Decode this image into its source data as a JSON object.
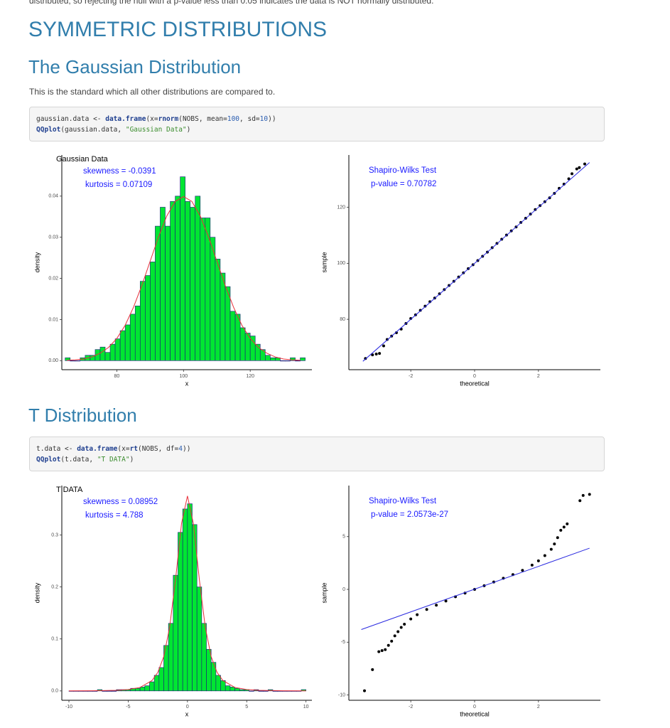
{
  "intro_fragment": "distributed, so rejecting the null with a p-value less than 0.05 indicates the data is NOT normally distributed.",
  "heading": "SYMMETRIC DISTRIBUTIONS",
  "sections": [
    {
      "title": "The Gaussian Distribution",
      "text": "This is the standard which all other distributions are compared to.",
      "code": [
        "gaussian.data <- data.frame(x=rnorm(NOBS, mean=100, sd=10))",
        "QQplot(gaussian.data, \"Gaussian Data\")"
      ],
      "charts": [
        {
          "type": "histogram",
          "title": "Gaussian Data",
          "annotations": [
            "skewness =  -0.0391",
            "kurtosis =  0.07109"
          ],
          "xlabel": "x",
          "ylabel": "density",
          "bins": [
            64.5,
            66,
            67.5,
            69,
            70.5,
            72,
            73.5,
            75,
            76.5,
            78,
            79.5,
            81,
            82.5,
            84,
            85.5,
            87,
            88.5,
            90,
            91.5,
            93,
            94.5,
            96,
            97.5,
            99,
            100.5,
            102,
            103.5,
            105,
            106.5,
            108,
            109.5,
            111,
            112.5,
            114,
            115.5,
            117,
            118.5,
            120,
            121.5,
            123,
            124.5,
            126,
            127.5,
            129,
            130.5,
            132,
            133.5,
            135,
            136.5
          ],
          "values": [
            0.0007,
            0,
            0,
            0.0007,
            0.0013,
            0.0013,
            0.0027,
            0.0033,
            0.002,
            0.004,
            0.0053,
            0.0073,
            0.0087,
            0.0113,
            0.0133,
            0.0193,
            0.0207,
            0.024,
            0.0327,
            0.0373,
            0.0327,
            0.0387,
            0.04,
            0.0447,
            0.0387,
            0.0373,
            0.04,
            0.0347,
            0.0347,
            0.03,
            0.0247,
            0.0213,
            0.018,
            0.012,
            0.0113,
            0.008,
            0.0067,
            0.006,
            0.004,
            0.0027,
            0.0013,
            0.0007,
            0.0007,
            0,
            0,
            0.0007,
            0,
            0.0007
          ],
          "color": "#00e632",
          "edgecolor": "#1c1c7a",
          "curve": {
            "x": [
              65,
              67.5,
              70,
              72.5,
              75,
              77.5,
              80,
              82.5,
              85,
              87.5,
              90,
              92.5,
              95,
              97.5,
              100,
              102.5,
              105,
              107.5,
              110,
              112.5,
              115,
              117.5,
              120,
              122.5,
              125,
              127.5,
              130,
              132.5,
              135
            ],
            "y": [
              0.0001,
              0.0002,
              0.0004,
              0.0009,
              0.0018,
              0.0032,
              0.0054,
              0.0086,
              0.013,
              0.0183,
              0.0242,
              0.0301,
              0.0352,
              0.0387,
              0.0399,
              0.0387,
              0.0352,
              0.0301,
              0.0242,
              0.0183,
              0.013,
              0.0086,
              0.0054,
              0.0032,
              0.0018,
              0.0009,
              0.0004,
              0.0002,
              0.0001
            ],
            "color": "#e8303a"
          },
          "xlim": [
            63.5,
            138.5
          ],
          "ylim": [
            -0.0022,
            0.05
          ],
          "xticks": [
            80,
            100,
            120
          ],
          "yticks": [
            {
              "value": 0,
              "label": "0.00"
            },
            0.01,
            0.02,
            0.03,
            0.04
          ]
        },
        {
          "type": "scatter",
          "annotations": [
            "Shapiro-Wilks Test",
            "p-value =  0.70782"
          ],
          "xlabel": "theoretical",
          "ylabel": "sample",
          "x": [
            -3.42,
            -3.2,
            -3.08,
            -2.98,
            -2.85,
            -2.74,
            -2.6,
            -2.45,
            -2.3,
            -2.15,
            -2.0,
            -1.85,
            -1.7,
            -1.55,
            -1.4,
            -1.25,
            -1.1,
            -0.95,
            -0.8,
            -0.65,
            -0.5,
            -0.35,
            -0.2,
            -0.05,
            0.1,
            0.25,
            0.4,
            0.55,
            0.7,
            0.85,
            1.0,
            1.15,
            1.3,
            1.45,
            1.6,
            1.75,
            1.9,
            2.05,
            2.2,
            2.35,
            2.5,
            2.65,
            2.8,
            2.95,
            3.05,
            3.2,
            3.28,
            3.45
          ],
          "y": [
            66.0,
            67.3,
            67.6,
            67.8,
            70.5,
            72.8,
            74.0,
            75.2,
            76.5,
            78.5,
            80.3,
            81.6,
            83.2,
            84.7,
            86.3,
            87.6,
            89.1,
            90.6,
            92.1,
            93.6,
            95.1,
            96.6,
            98.1,
            99.5,
            101.0,
            102.5,
            104.0,
            105.6,
            107.1,
            108.6,
            110.1,
            111.6,
            113.0,
            114.6,
            116.1,
            117.6,
            119.2,
            120.6,
            122.0,
            123.4,
            125.0,
            126.8,
            128.3,
            130.2,
            132.0,
            133.7,
            134.2,
            135.5
          ],
          "color": "#000000",
          "reference_line": {
            "x": [
              -3.5,
              3.6
            ],
            "y": [
              65,
              136
            ],
            "color": "#2a2ae0"
          },
          "xlim": [
            -3.94,
            3.94
          ],
          "ylim": [
            62,
            138.7
          ],
          "xticks": [
            -2,
            0,
            2
          ],
          "yticks": [
            80,
            100,
            120
          ]
        }
      ]
    },
    {
      "title": "T Distribution",
      "code": [
        "t.data <- data.frame(x=rt(NOBS, df=4))",
        "QQplot(t.data, \"T DATA\")"
      ],
      "charts": [
        {
          "type": "histogram",
          "title": "T DATA",
          "annotations": [
            "skewness =  0.08952",
            "kurtosis =  4.788"
          ],
          "xlabel": "x",
          "ylabel": "density",
          "bins": [
            -10,
            -9.6,
            -9.2,
            -8.8,
            -8.4,
            -8,
            -7.6,
            -7.2,
            -6.8,
            -6.4,
            -6,
            -5.6,
            -5.2,
            -4.8,
            -4.4,
            -4,
            -3.6,
            -3.2,
            -2.8,
            -2.4,
            -2,
            -1.6,
            -1.2,
            -0.8,
            -0.4,
            0,
            0.4,
            0.8,
            1.2,
            1.6,
            2,
            2.4,
            2.8,
            3.2,
            3.6,
            4,
            4.4,
            4.8,
            5.2,
            5.6,
            6,
            6.4,
            6.8,
            7.2,
            7.6,
            8,
            8.4,
            8.8,
            9.2,
            9.6,
            10
          ],
          "values": [
            0,
            0,
            0,
            0,
            0,
            0,
            0.0025,
            0,
            0,
            0,
            0.0025,
            0.0025,
            0.0025,
            0.005,
            0.005,
            0.0075,
            0.01,
            0.0175,
            0.03,
            0.045,
            0.0875,
            0.13,
            0.2225,
            0.305,
            0.35,
            0.36,
            0.32,
            0.2,
            0.13,
            0.08,
            0.055,
            0.03,
            0.02,
            0.01,
            0.0075,
            0.005,
            0.0025,
            0.0025,
            0,
            0.0025,
            0,
            0,
            0.0025,
            0,
            0,
            0,
            0,
            0,
            0,
            0.0025
          ],
          "color": "#00e632",
          "edgecolor": "#1c1c7a",
          "curve": {
            "x": [
              -10,
              -8,
              -6,
              -5,
              -4,
              -3,
              -2.5,
              -2,
              -1.5,
              -1,
              -0.5,
              0,
              0.5,
              1,
              1.5,
              2,
              2.5,
              3,
              4,
              5,
              6,
              8,
              10
            ],
            "y": [
              0.0001,
              0.0003,
              0.0012,
              0.0027,
              0.0067,
              0.0198,
              0.0356,
              0.066,
              0.123,
              0.215,
              0.322,
              0.375,
              0.322,
              0.215,
              0.123,
              0.066,
              0.0356,
              0.0198,
              0.0067,
              0.0027,
              0.0012,
              0.0003,
              0.0001
            ],
            "color": "#e8303a"
          },
          "xlim": [
            -10.6,
            10.5
          ],
          "ylim": [
            -0.018,
            0.395
          ],
          "xticks": [
            -10,
            -5,
            0,
            5,
            10
          ],
          "yticks": [
            {
              "value": 0,
              "label": "0.0"
            },
            0.1,
            0.2,
            0.3
          ]
        },
        {
          "type": "scatter",
          "annotations": [
            "Shapiro-Wilks Test",
            "p-value =  2.0573e-27"
          ],
          "xlabel": "theoretical",
          "ylabel": "sample",
          "x": [
            -3.45,
            -3.2,
            -3.0,
            -2.9,
            -2.8,
            -2.7,
            -2.6,
            -2.5,
            -2.4,
            -2.3,
            -2.2,
            -2.0,
            -1.8,
            -1.5,
            -1.2,
            -0.9,
            -0.6,
            -0.3,
            0,
            0.3,
            0.6,
            0.9,
            1.2,
            1.5,
            1.8,
            2.0,
            2.2,
            2.4,
            2.5,
            2.6,
            2.7,
            2.8,
            2.9,
            3.3,
            3.4,
            3.6
          ],
          "y": [
            -9.6,
            -7.6,
            -5.9,
            -5.8,
            -5.7,
            -5.3,
            -4.9,
            -4.4,
            -4.0,
            -3.6,
            -3.3,
            -2.8,
            -2.4,
            -1.9,
            -1.5,
            -1.1,
            -0.7,
            -0.35,
            0,
            0.35,
            0.7,
            1.05,
            1.4,
            1.8,
            2.3,
            2.7,
            3.2,
            3.8,
            4.3,
            4.9,
            5.6,
            5.9,
            6.2,
            8.4,
            8.9,
            9.0
          ],
          "color": "#000000",
          "reference_line": {
            "x": [
              -3.55,
              3.6
            ],
            "y": [
              -3.8,
              3.9
            ],
            "color": "#2a2ae0"
          },
          "xlim": [
            -3.94,
            3.94
          ],
          "ylim": [
            -10.5,
            9.83
          ],
          "xticks": [
            -2,
            0,
            2
          ],
          "yticks": [
            -10,
            -5,
            0,
            5
          ]
        }
      ]
    }
  ]
}
